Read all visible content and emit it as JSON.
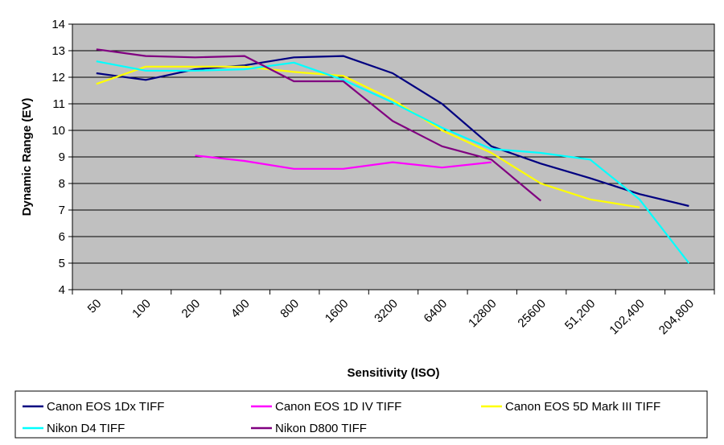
{
  "chart_data": {
    "type": "line",
    "xlabel": "Sensitivity (ISO)",
    "ylabel": "Dynamic Range (EV)",
    "x_tick_labels": [
      "50",
      "100",
      "200",
      "400",
      "800",
      "1600",
      "3200",
      "6400",
      "12800",
      "25600",
      "51,200",
      "102,400",
      "204,800"
    ],
    "y_tick_labels": [
      "4",
      "5",
      "6",
      "7",
      "8",
      "9",
      "10",
      "11",
      "12",
      "13",
      "14"
    ],
    "ylim": [
      4,
      14
    ],
    "x_scale": "log2",
    "grid": "horizontal",
    "plot_background": "#c0c0c0",
    "legend_position": "bottom",
    "series": [
      {
        "name": "Canon EOS 1Dx TIFF",
        "color": "#000080",
        "points": [
          [
            70,
            12.15
          ],
          [
            140,
            11.9
          ],
          [
            280,
            12.3
          ],
          [
            560,
            12.45
          ],
          [
            1120,
            12.75
          ],
          [
            2240,
            12.8
          ],
          [
            4480,
            12.15
          ],
          [
            8960,
            11.0
          ],
          [
            17920,
            9.4
          ],
          [
            35840,
            8.75
          ],
          [
            71680,
            8.2
          ],
          [
            143360,
            7.6
          ],
          [
            286720,
            7.15
          ]
        ]
      },
      {
        "name": "Canon EOS 1D IV TIFF",
        "color": "#ff00ff",
        "points": [
          [
            280,
            9.05
          ],
          [
            560,
            8.85
          ],
          [
            1120,
            8.55
          ],
          [
            2240,
            8.55
          ],
          [
            4480,
            8.8
          ],
          [
            8960,
            8.6
          ],
          [
            17920,
            8.8
          ]
        ]
      },
      {
        "name": "Canon EOS 5D Mark III TIFF",
        "color": "#ffff00",
        "points": [
          [
            70,
            11.75
          ],
          [
            140,
            12.4
          ],
          [
            280,
            12.4
          ],
          [
            560,
            12.4
          ],
          [
            1120,
            12.2
          ],
          [
            2240,
            12.05
          ],
          [
            4480,
            11.15
          ],
          [
            8960,
            10.0
          ],
          [
            17920,
            9.15
          ],
          [
            35840,
            8.0
          ],
          [
            71680,
            7.4
          ],
          [
            143360,
            7.1
          ]
        ]
      },
      {
        "name": "Nikon D4 TIFF",
        "color": "#00ffff",
        "points": [
          [
            70,
            12.6
          ],
          [
            140,
            12.25
          ],
          [
            280,
            12.25
          ],
          [
            560,
            12.3
          ],
          [
            1120,
            12.55
          ],
          [
            2240,
            11.9
          ],
          [
            4480,
            11.05
          ],
          [
            8960,
            10.1
          ],
          [
            17920,
            9.3
          ],
          [
            35840,
            9.15
          ],
          [
            71680,
            8.9
          ],
          [
            143360,
            7.4
          ],
          [
            286720,
            5.0
          ]
        ]
      },
      {
        "name": "Nikon D800 TIFF",
        "color": "#800080",
        "points": [
          [
            70,
            13.05
          ],
          [
            140,
            12.8
          ],
          [
            280,
            12.75
          ],
          [
            560,
            12.8
          ],
          [
            1120,
            11.85
          ],
          [
            2240,
            11.85
          ],
          [
            4480,
            10.35
          ],
          [
            8960,
            9.4
          ],
          [
            17920,
            8.9
          ],
          [
            35840,
            7.35
          ]
        ]
      }
    ]
  }
}
